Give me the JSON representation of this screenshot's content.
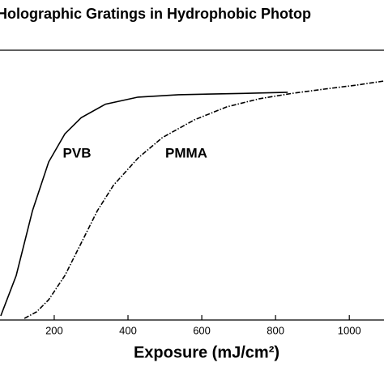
{
  "chart_data": {
    "type": "line",
    "title": "Holographic Gratings in Hydrophobic Photop",
    "x_label": "Exposure (mJ/cm²)",
    "xlim": [
      53,
      1094
    ],
    "xticks": [
      200,
      400,
      600,
      800,
      1000
    ],
    "ylim": [
      0,
      1
    ],
    "series": [
      {
        "name": "PVB",
        "color": "#000000",
        "dash": "solid",
        "x": [
          55,
          97,
          141,
          185,
          229,
          273,
          339,
          427,
          537,
          712,
          833
        ],
        "values": [
          0.015,
          0.165,
          0.405,
          0.586,
          0.69,
          0.75,
          0.8,
          0.826,
          0.835,
          0.84,
          0.844
        ]
      },
      {
        "name": "PMMA",
        "color": "#000000",
        "dash": "dashdot",
        "x": [
          119,
          152,
          185,
          229,
          273,
          317,
          361,
          427,
          493,
          580,
          668,
          756,
          844,
          932,
          1020,
          1094
        ],
        "values": [
          0.006,
          0.03,
          0.075,
          0.165,
          0.285,
          0.405,
          0.5,
          0.6,
          0.676,
          0.742,
          0.79,
          0.82,
          0.84,
          0.856,
          0.871,
          0.886
        ]
      }
    ]
  }
}
